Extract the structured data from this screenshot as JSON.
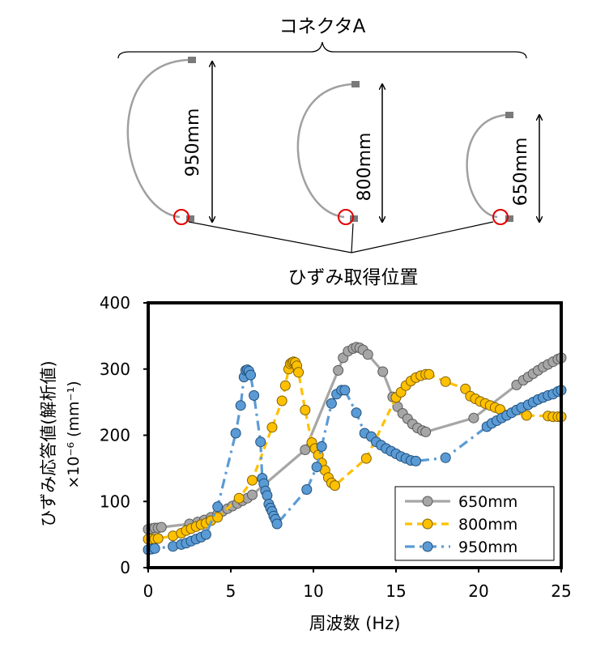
{
  "diagram": {
    "connector_label": "コネクタA",
    "strain_label": "ひずみ取得位置",
    "cables": [
      {
        "length_label": "950mm"
      },
      {
        "length_label": "800mm"
      },
      {
        "length_label": "650mm"
      }
    ]
  },
  "colors": {
    "s650": "#a6a6a6",
    "s650_edge": "#595959",
    "s800": "#ffc000",
    "s800_edge": "#7f6000",
    "s950": "#5b9bd5",
    "s950_edge": "#1f4e79",
    "marker_circle": "#e00000"
  },
  "chart_data": {
    "type": "line",
    "xlabel": "周波数 (Hz)",
    "ylabel_line1": "ひずみ応答値(解析値)",
    "ylabel_line2": "×10⁻⁶ (mm⁻¹)",
    "xlim": [
      0,
      25
    ],
    "ylim": [
      0,
      400
    ],
    "xticks": [
      "0",
      "5",
      "10",
      "15",
      "20",
      "25"
    ],
    "yticks": [
      "0",
      "100",
      "200",
      "300",
      "400"
    ],
    "grid": false,
    "legend_position": "bottom-right",
    "series": [
      {
        "name": "650mm",
        "line_style": "solid",
        "points": [
          [
            0,
            58
          ],
          [
            0.2,
            59
          ],
          [
            0.4,
            60
          ],
          [
            0.6,
            60
          ],
          [
            0.8,
            61
          ],
          [
            2.5,
            66
          ],
          [
            3,
            69
          ],
          [
            3.4,
            72
          ],
          [
            3.8,
            76
          ],
          [
            4.2,
            81
          ],
          [
            4.5,
            85
          ],
          [
            4.8,
            89
          ],
          [
            5.1,
            93
          ],
          [
            5.4,
            97
          ],
          [
            5.7,
            101
          ],
          [
            6,
            105
          ],
          [
            6.3,
            110
          ],
          [
            9.5,
            178
          ],
          [
            11.5,
            298
          ],
          [
            11.8,
            317
          ],
          [
            12.1,
            327
          ],
          [
            12.4,
            331
          ],
          [
            12.6,
            333
          ],
          [
            12.8,
            332
          ],
          [
            13,
            329
          ],
          [
            13.3,
            322
          ],
          [
            14.2,
            296
          ],
          [
            14.8,
            258
          ],
          [
            15.1,
            243
          ],
          [
            15.4,
            233
          ],
          [
            15.7,
            225
          ],
          [
            16,
            217
          ],
          [
            16.3,
            211
          ],
          [
            16.6,
            207
          ],
          [
            16.8,
            205
          ],
          [
            19.7,
            226
          ],
          [
            22.3,
            276
          ],
          [
            22.7,
            283
          ],
          [
            23,
            288
          ],
          [
            23.3,
            293
          ],
          [
            23.6,
            298
          ],
          [
            23.9,
            303
          ],
          [
            24.2,
            307
          ],
          [
            24.5,
            311
          ],
          [
            24.8,
            315
          ],
          [
            25,
            317
          ]
        ]
      },
      {
        "name": "800mm",
        "line_style": "dash",
        "points": [
          [
            0,
            43
          ],
          [
            0.2,
            43
          ],
          [
            0.4,
            43
          ],
          [
            0.6,
            44
          ],
          [
            1.5,
            48
          ],
          [
            2,
            52
          ],
          [
            2.3,
            56
          ],
          [
            2.6,
            59
          ],
          [
            2.9,
            62
          ],
          [
            3.2,
            65
          ],
          [
            3.5,
            67
          ],
          [
            3.8,
            71
          ],
          [
            4.2,
            76
          ],
          [
            5.5,
            105
          ],
          [
            6.3,
            132
          ],
          [
            7.5,
            212
          ],
          [
            8.1,
            252
          ],
          [
            8.3,
            275
          ],
          [
            8.5,
            300
          ],
          [
            8.6,
            308
          ],
          [
            8.7,
            310
          ],
          [
            8.8,
            311
          ],
          [
            8.9,
            310
          ],
          [
            9,
            305
          ],
          [
            9.1,
            295
          ],
          [
            9.5,
            238
          ],
          [
            9.9,
            189
          ],
          [
            10.1,
            180
          ],
          [
            10.3,
            170
          ],
          [
            10.5,
            158
          ],
          [
            10.7,
            147
          ],
          [
            10.9,
            136
          ],
          [
            11.1,
            128
          ],
          [
            11.3,
            124
          ],
          [
            13.2,
            165
          ],
          [
            15,
            257
          ],
          [
            15.3,
            265
          ],
          [
            15.6,
            275
          ],
          [
            15.9,
            282
          ],
          [
            16.2,
            287
          ],
          [
            16.5,
            290
          ],
          [
            16.8,
            292
          ],
          [
            17,
            292
          ],
          [
            18,
            281
          ],
          [
            19.2,
            270
          ],
          [
            19.5,
            259
          ],
          [
            19.8,
            255
          ],
          [
            20.1,
            251
          ],
          [
            20.4,
            248
          ],
          [
            20.7,
            245
          ],
          [
            21,
            242
          ],
          [
            21.3,
            239
          ],
          [
            22.9,
            230
          ],
          [
            24.2,
            229
          ],
          [
            24.5,
            228
          ],
          [
            24.8,
            228
          ],
          [
            25,
            228
          ]
        ]
      },
      {
        "name": "950mm",
        "line_style": "dashdot",
        "points": [
          [
            0,
            27
          ],
          [
            0.2,
            28
          ],
          [
            0.4,
            29
          ],
          [
            1.5,
            32
          ],
          [
            2,
            35
          ],
          [
            2.3,
            37
          ],
          [
            2.6,
            40
          ],
          [
            2.9,
            43
          ],
          [
            3.2,
            46
          ],
          [
            3.5,
            50
          ],
          [
            4.2,
            92
          ],
          [
            5.3,
            203
          ],
          [
            5.6,
            245
          ],
          [
            5.8,
            288
          ],
          [
            5.9,
            298
          ],
          [
            6,
            299
          ],
          [
            6.1,
            297
          ],
          [
            6.2,
            291
          ],
          [
            6.4,
            260
          ],
          [
            6.8,
            190
          ],
          [
            6.9,
            135
          ],
          [
            7,
            127
          ],
          [
            7.1,
            116
          ],
          [
            7.2,
            109
          ],
          [
            7.3,
            96
          ],
          [
            7.4,
            90
          ],
          [
            7.5,
            85
          ],
          [
            7.6,
            78
          ],
          [
            7.7,
            73
          ],
          [
            7.8,
            66
          ],
          [
            9.6,
            118
          ],
          [
            10.2,
            152
          ],
          [
            10.5,
            183
          ],
          [
            11.1,
            248
          ],
          [
            11.4,
            262
          ],
          [
            11.7,
            268
          ],
          [
            11.9,
            268
          ],
          [
            12.6,
            234
          ],
          [
            13.1,
            203
          ],
          [
            13.5,
            198
          ],
          [
            13.8,
            190
          ],
          [
            14.1,
            185
          ],
          [
            14.4,
            180
          ],
          [
            14.7,
            176
          ],
          [
            15,
            172
          ],
          [
            15.3,
            168
          ],
          [
            15.6,
            165
          ],
          [
            15.9,
            162
          ],
          [
            16.2,
            161
          ],
          [
            18,
            166
          ],
          [
            20.5,
            213
          ],
          [
            20.8,
            218
          ],
          [
            21.1,
            222
          ],
          [
            21.4,
            226
          ],
          [
            21.7,
            230
          ],
          [
            22,
            234
          ],
          [
            22.3,
            238
          ],
          [
            22.6,
            242
          ],
          [
            23,
            246
          ],
          [
            23.3,
            250
          ],
          [
            23.6,
            254
          ],
          [
            23.9,
            257
          ],
          [
            24.2,
            260
          ],
          [
            24.5,
            262
          ],
          [
            24.8,
            266
          ],
          [
            25,
            268
          ]
        ]
      }
    ]
  }
}
